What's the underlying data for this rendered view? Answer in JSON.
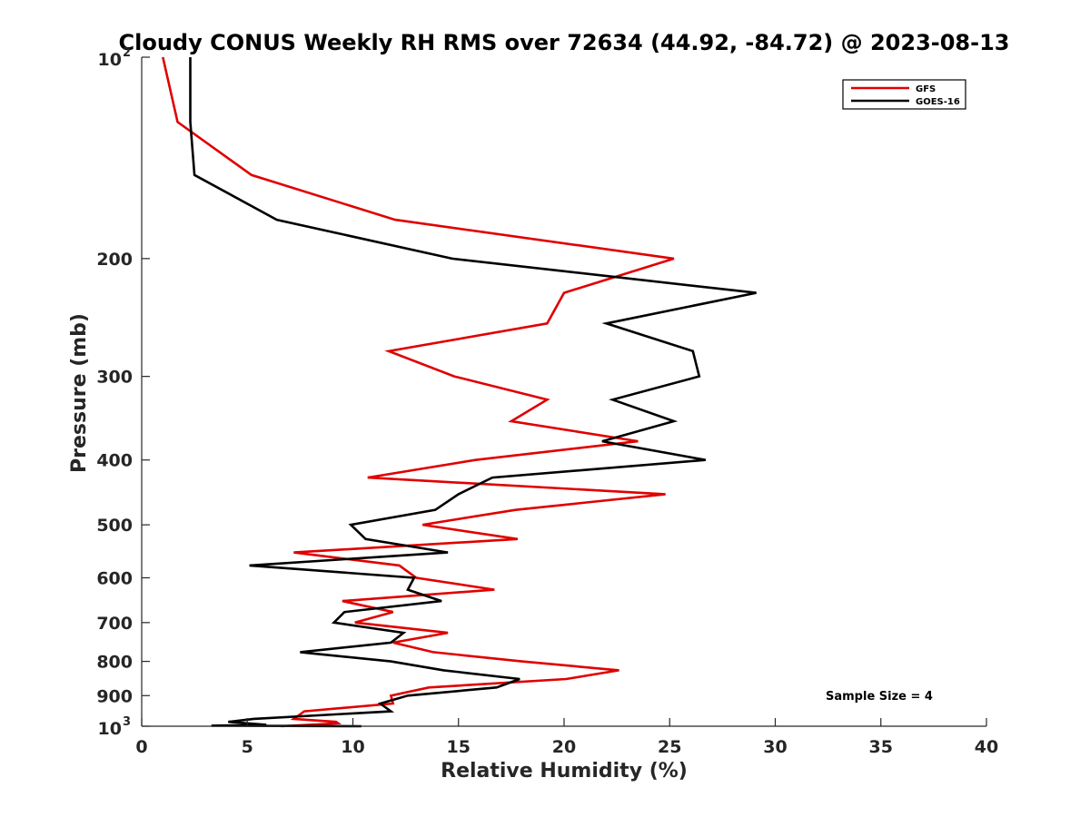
{
  "chart_data": {
    "type": "line",
    "title": "Cloudy CONUS Weekly RH RMS over 72634 (44.92, -84.72) @ 2023-08-13",
    "xlabel": "Relative Humidity (%)",
    "ylabel": "Pressure (mb)",
    "xlim": [
      0,
      40
    ],
    "ylim": [
      100,
      1000
    ],
    "y_scale": "log",
    "y_reversed": true,
    "grid": false,
    "legend_position": "top-right",
    "x_ticks": [
      "0",
      "5",
      "10",
      "15",
      "20",
      "25",
      "30",
      "35",
      "40"
    ],
    "y_ticks": [
      {
        "value": 100,
        "base": "10",
        "exp": "2"
      },
      {
        "value": 200,
        "label": "200"
      },
      {
        "value": 300,
        "label": "300"
      },
      {
        "value": 400,
        "label": "400"
      },
      {
        "value": 500,
        "label": "500"
      },
      {
        "value": 600,
        "label": "600"
      },
      {
        "value": 700,
        "label": "700"
      },
      {
        "value": 800,
        "label": "800"
      },
      {
        "value": 900,
        "label": "900"
      },
      {
        "value": 1000,
        "base": "10",
        "exp": "3"
      }
    ],
    "annotation": "Sample Size = 4",
    "series": [
      {
        "name": "GFS",
        "color": "#e00000",
        "points": [
          [
            1.0,
            100
          ],
          [
            1.7,
            125
          ],
          [
            5.2,
            150
          ],
          [
            12.0,
            175
          ],
          [
            25.2,
            200
          ],
          [
            20.0,
            225
          ],
          [
            19.2,
            250
          ],
          [
            11.7,
            275
          ],
          [
            14.8,
            300
          ],
          [
            19.2,
            325
          ],
          [
            17.5,
            350
          ],
          [
            23.5,
            375
          ],
          [
            15.8,
            400
          ],
          [
            10.7,
            425
          ],
          [
            24.8,
            450
          ],
          [
            17.7,
            475
          ],
          [
            13.3,
            500
          ],
          [
            17.8,
            525
          ],
          [
            7.2,
            550
          ],
          [
            12.2,
            575
          ],
          [
            13.0,
            600
          ],
          [
            16.7,
            625
          ],
          [
            9.5,
            650
          ],
          [
            11.9,
            675
          ],
          [
            10.1,
            700
          ],
          [
            14.5,
            725
          ],
          [
            11.9,
            750
          ],
          [
            13.8,
            775
          ],
          [
            18.0,
            800
          ],
          [
            22.6,
            825
          ],
          [
            20.1,
            850
          ],
          [
            13.6,
            875
          ],
          [
            11.8,
            900
          ],
          [
            11.9,
            925
          ],
          [
            7.7,
            950
          ],
          [
            7.2,
            975
          ],
          [
            9.2,
            985
          ],
          [
            9.3,
            990
          ],
          [
            6.6,
            1000
          ]
        ]
      },
      {
        "name": "GOES-16",
        "color": "#000000",
        "points": [
          [
            2.3,
            100
          ],
          [
            2.3,
            125
          ],
          [
            2.5,
            150
          ],
          [
            6.4,
            175
          ],
          [
            14.7,
            200
          ],
          [
            29.1,
            225
          ],
          [
            22.0,
            250
          ],
          [
            26.1,
            275
          ],
          [
            26.4,
            300
          ],
          [
            22.3,
            325
          ],
          [
            25.2,
            350
          ],
          [
            21.8,
            375
          ],
          [
            26.7,
            400
          ],
          [
            16.6,
            425
          ],
          [
            15.0,
            450
          ],
          [
            13.9,
            475
          ],
          [
            9.9,
            500
          ],
          [
            10.6,
            525
          ],
          [
            14.5,
            550
          ],
          [
            5.1,
            575
          ],
          [
            12.9,
            600
          ],
          [
            12.6,
            625
          ],
          [
            14.2,
            650
          ],
          [
            9.6,
            675
          ],
          [
            9.1,
            700
          ],
          [
            12.4,
            725
          ],
          [
            11.8,
            750
          ],
          [
            7.5,
            775
          ],
          [
            11.8,
            800
          ],
          [
            14.3,
            825
          ],
          [
            17.9,
            850
          ],
          [
            16.8,
            875
          ],
          [
            12.6,
            900
          ],
          [
            11.3,
            925
          ],
          [
            11.8,
            950
          ],
          [
            5.3,
            975
          ],
          [
            4.1,
            985
          ],
          [
            5.0,
            990
          ],
          [
            5.9,
            995
          ],
          [
            3.3,
            998
          ],
          [
            10.4,
            1000
          ]
        ]
      }
    ]
  }
}
